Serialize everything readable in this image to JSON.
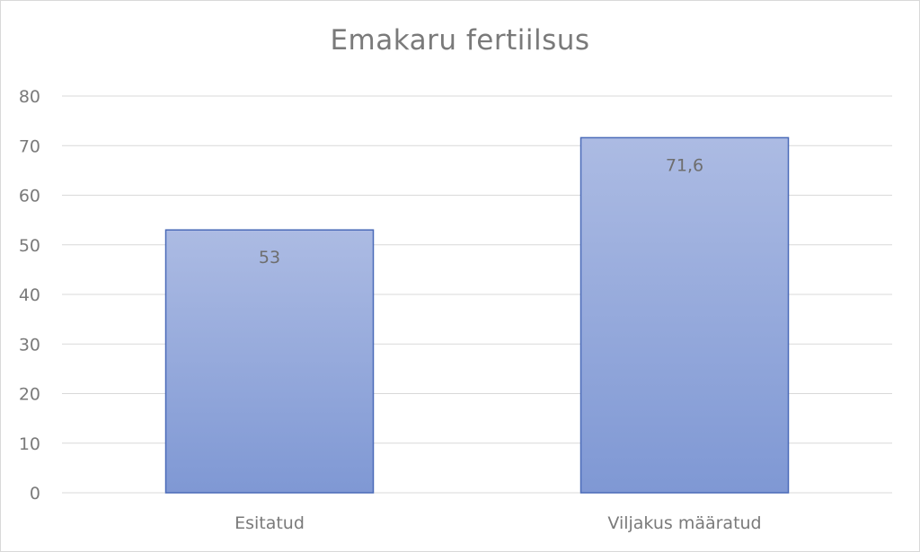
{
  "chart_data": {
    "type": "bar",
    "title": "Emakaru fertiilsus",
    "categories": [
      "Esitatud",
      "Viljakus määratud"
    ],
    "values": [
      53,
      71.6
    ],
    "data_labels": [
      "53",
      "71,6"
    ],
    "ylim": [
      0,
      80
    ],
    "yticks": [
      0,
      10,
      20,
      30,
      40,
      50,
      60,
      70,
      80
    ],
    "grid": true,
    "legend": "none",
    "colors": {
      "bar_top": "#acbbe3",
      "bar_bottom": "#7f98d4",
      "bar_border": "#4a6ab8",
      "grid": "#d9d9d9",
      "text": "#7a7a7a"
    }
  }
}
